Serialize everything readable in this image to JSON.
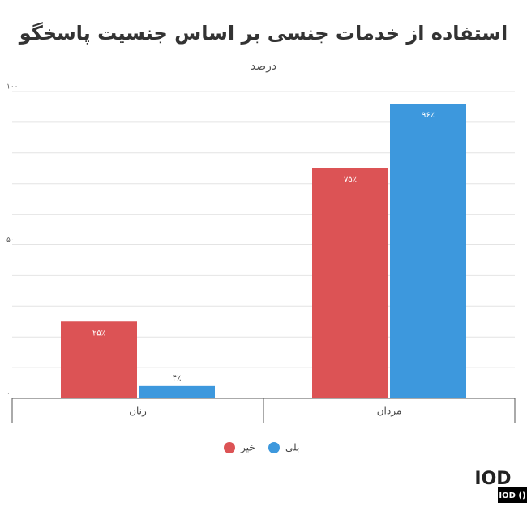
{
  "chart_data": {
    "type": "bar",
    "title": "استفاده از خدمات جنسی بر اساس جنسیت پاسخگو",
    "subtitle": "درصد",
    "categories": [
      "زنان",
      "مردان"
    ],
    "series": [
      {
        "name": "خیر",
        "color": "#dc5355",
        "values": [
          25,
          75
        ],
        "value_labels": [
          "۲۵٪",
          "۷۵٪"
        ]
      },
      {
        "name": "بلی",
        "color": "#3d98dd",
        "values": [
          4,
          96
        ],
        "value_labels": [
          "۴٪",
          "۹۶٪"
        ]
      }
    ],
    "ylim": [
      0,
      100
    ],
    "yticks": [
      {
        "value": 0,
        "label": "۰"
      },
      {
        "value": 50,
        "label": "۵۰"
      },
      {
        "value": 100,
        "label": "۱۰۰"
      }
    ],
    "minor_yticks": [
      10,
      20,
      30,
      40,
      60,
      70,
      80,
      90
    ],
    "grid": true,
    "legend": "bottom"
  },
  "watermark": {
    "logo": "IOD",
    "badge": "IOD ()"
  }
}
